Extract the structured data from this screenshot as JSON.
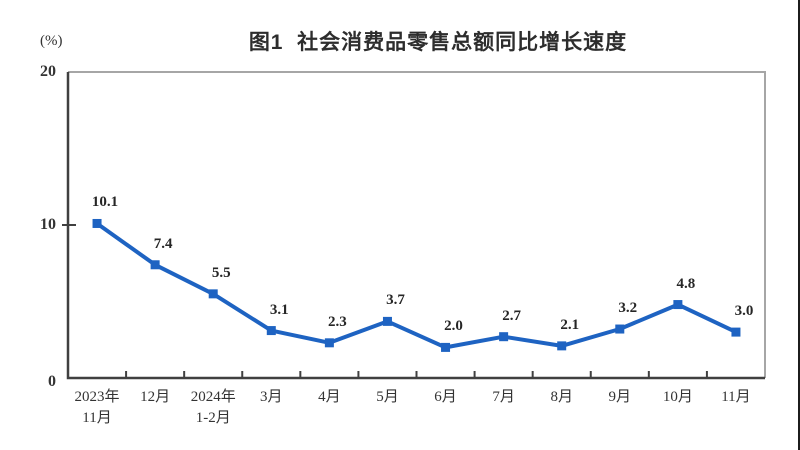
{
  "page": {
    "background": "#ffffff",
    "right_edge_color": "#1c1c1c"
  },
  "chart": {
    "title": "图1  社会消费品零售总额同比增长速度",
    "unit_label": "(%)",
    "colors": {
      "line": "#1e63c2",
      "marker": "#1e63c2",
      "plot_border_light": "#a6a6a6",
      "axis_dark": "#404040",
      "text": "#333333"
    }
  },
  "chart_data": {
    "type": "line",
    "title": "图1  社会消费品零售总额同比增长速度",
    "xlabel": "",
    "ylabel": "(%)",
    "categories": [
      "2023年\n11月",
      "12月",
      "2024年\n1-2月",
      "3月",
      "4月",
      "5月",
      "6月",
      "7月",
      "8月",
      "9月",
      "10月",
      "11月"
    ],
    "values": [
      10.1,
      7.4,
      5.5,
      3.1,
      2.3,
      3.7,
      2.0,
      2.7,
      2.1,
      3.2,
      4.8,
      3.0
    ],
    "ylim": [
      0,
      20
    ],
    "yticks": [
      0,
      10,
      20
    ],
    "grid": false,
    "legend": false,
    "marker": "square",
    "data_labels": true,
    "label_format": "one_decimal"
  }
}
